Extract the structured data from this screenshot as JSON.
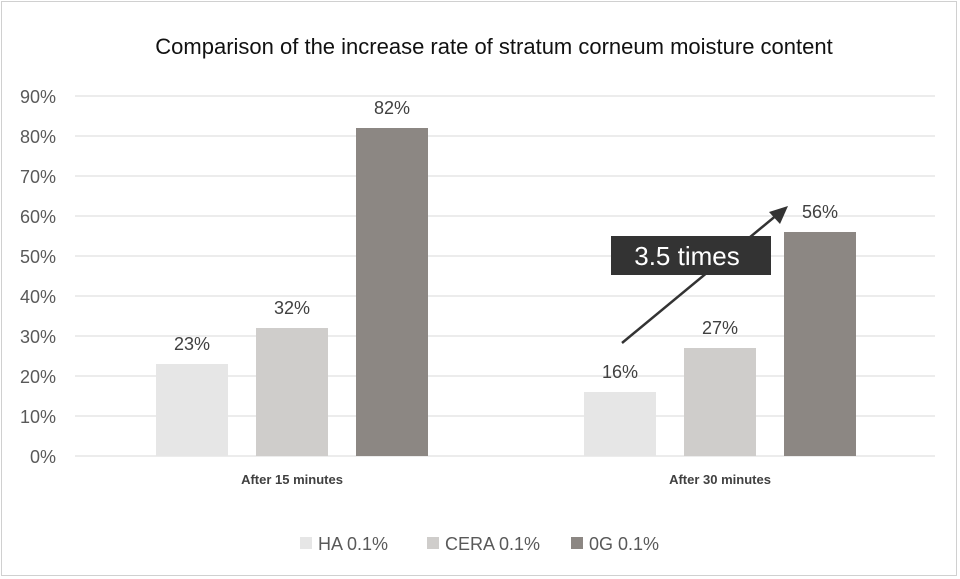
{
  "chart_data": {
    "type": "bar",
    "title": "Comparison of the increase rate of stratum corneum moisture content",
    "xlabel": "",
    "ylabel": "",
    "ylim": [
      0,
      90
    ],
    "yticks": [
      "0%",
      "10%",
      "20%",
      "30%",
      "40%",
      "50%",
      "60%",
      "70%",
      "80%",
      "90%"
    ],
    "ytick_values": [
      0,
      10,
      20,
      30,
      40,
      50,
      60,
      70,
      80,
      90
    ],
    "grid": true,
    "legend_position": "bottom",
    "categories": [
      "After 15 minutes",
      "After 30 minutes"
    ],
    "series": [
      {
        "name": "HA 0.1%",
        "values": [
          23,
          16
        ],
        "labels": [
          "23%",
          "16%"
        ],
        "color": "#e6e6e6"
      },
      {
        "name": "CERA 0.1%",
        "values": [
          32,
          27
        ],
        "labels": [
          "32%",
          "27%"
        ],
        "color": "#cfcdcb"
      },
      {
        "name": "0G 0.1%",
        "values": [
          82,
          56
        ],
        "labels": [
          "82%",
          "56%"
        ],
        "color": "#8c8783"
      }
    ],
    "annotation": {
      "text": "3.5 times",
      "from_value": 16,
      "to_value": 56,
      "box_color": "#333333"
    }
  }
}
